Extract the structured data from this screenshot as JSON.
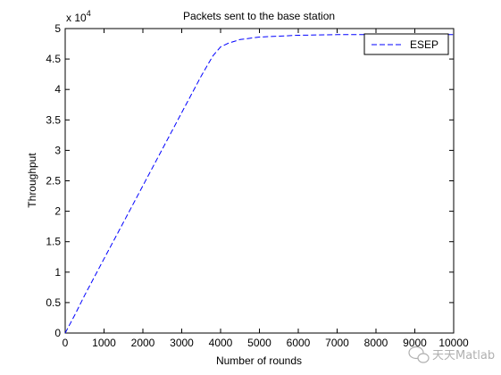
{
  "chart_data": {
    "type": "line",
    "title": "Packets sent to the base station",
    "xlabel": "Number of rounds",
    "ylabel": "Throughput",
    "xlim": [
      0,
      10000
    ],
    "ylim": [
      0,
      5
    ],
    "y_exponent_base": "x 10",
    "y_exponent_power": "4",
    "xticks": [
      "0",
      "1000",
      "2000",
      "3000",
      "4000",
      "5000",
      "6000",
      "7000",
      "8000",
      "9000",
      "10000"
    ],
    "yticks": [
      "0",
      "0.5",
      "1",
      "1.5",
      "2",
      "2.5",
      "3",
      "3.5",
      "4",
      "4.5",
      "5"
    ],
    "xtick_values": [
      0,
      1000,
      2000,
      3000,
      4000,
      5000,
      6000,
      7000,
      8000,
      9000,
      10000
    ],
    "ytick_values": [
      0,
      0.5,
      1,
      1.5,
      2,
      2.5,
      3,
      3.5,
      4,
      4.5,
      5
    ],
    "grid": false,
    "legend_position": "top-right",
    "series": [
      {
        "name": "ESEP",
        "color": "#0000ff",
        "line_style": "dashed",
        "x": [
          0,
          250,
          500,
          1000,
          1500,
          2000,
          2500,
          3000,
          3500,
          3800,
          4000,
          4200,
          4500,
          5000,
          6000,
          7000,
          8000,
          9000,
          10000
        ],
        "y": [
          0,
          0.3,
          0.62,
          1.22,
          1.82,
          2.42,
          3.02,
          3.62,
          4.22,
          4.55,
          4.7,
          4.76,
          4.82,
          4.86,
          4.89,
          4.9,
          4.9,
          4.9,
          4.9
        ]
      }
    ]
  },
  "watermark": {
    "text": "天天Matlab",
    "icon": "wechat-icon"
  }
}
